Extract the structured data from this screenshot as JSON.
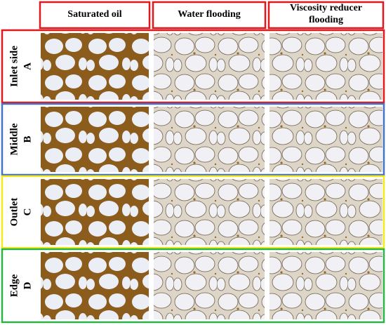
{
  "columns": [
    [
      "Saturated oil"
    ],
    [
      "Water flooding"
    ],
    [
      "Viscosity reducer",
      "flooding"
    ]
  ],
  "rows": [
    {
      "name": "Inlet side",
      "letter": "A"
    },
    {
      "name": "Middle",
      "letter": "B"
    },
    {
      "name": "Outlet",
      "letter": "C"
    },
    {
      "name": "Edge",
      "letter": "D"
    }
  ]
}
